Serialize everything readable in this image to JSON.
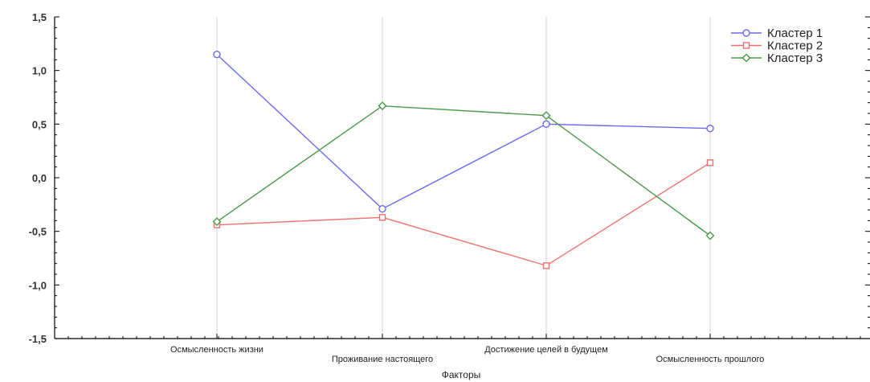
{
  "chart_data": {
    "type": "line",
    "title": "",
    "xlabel": "Факторы",
    "ylabel": "",
    "categories": [
      "Осмысленность жизни",
      "Проживание настоящего",
      "Достижение целей в будущем",
      "Осмысленность прошлого"
    ],
    "ylim": [
      -1.5,
      1.5
    ],
    "yticks": [
      "-1,5",
      "-1,0",
      "-0,5",
      "0,0",
      "0,5",
      "1,0",
      "1,5"
    ],
    "grid": "vertical",
    "legend_position": "top-right",
    "series": [
      {
        "name": "Кластер  1",
        "values": [
          1.15,
          -0.29,
          0.5,
          0.46
        ],
        "color": "#6a6af0",
        "marker": "circle"
      },
      {
        "name": "Кластер  2",
        "values": [
          -0.44,
          -0.37,
          -0.82,
          0.14
        ],
        "color": "#f07070",
        "marker": "square"
      },
      {
        "name": "Кластер  3",
        "values": [
          -0.41,
          0.67,
          0.58,
          -0.54
        ],
        "color": "#4a9a4a",
        "marker": "diamond"
      }
    ]
  }
}
